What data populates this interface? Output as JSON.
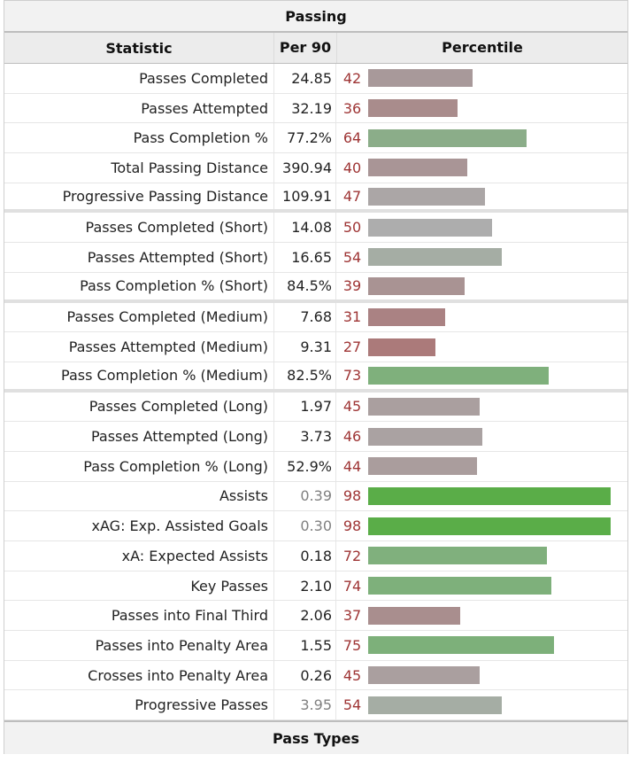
{
  "section_title": "Passing",
  "headers": {
    "statistic": "Statistic",
    "per90": "Per 90",
    "percentile": "Percentile"
  },
  "footer_title": "Pass Types",
  "rows": [
    {
      "label": "Passes Completed",
      "per90": "24.85",
      "percentile": 42,
      "color": "#a8999a",
      "muted": false,
      "sep": false
    },
    {
      "label": "Passes Attempted",
      "per90": "32.19",
      "percentile": 36,
      "color": "#a98c8c",
      "muted": false,
      "sep": false
    },
    {
      "label": "Pass Completion %",
      "per90": "77.2%",
      "percentile": 64,
      "color": "#8bad89",
      "muted": false,
      "sep": false
    },
    {
      "label": "Total Passing Distance",
      "per90": "390.94",
      "percentile": 40,
      "color": "#a99596",
      "muted": false,
      "sep": false
    },
    {
      "label": "Progressive Passing Distance",
      "per90": "109.91",
      "percentile": 47,
      "color": "#aba6a6",
      "muted": false,
      "sep": true
    },
    {
      "label": "Passes Completed (Short)",
      "per90": "14.08",
      "percentile": 50,
      "color": "#adadad",
      "muted": false,
      "sep": false
    },
    {
      "label": "Passes Attempted (Short)",
      "per90": "16.65",
      "percentile": 54,
      "color": "#a5ada4",
      "muted": false,
      "sep": false
    },
    {
      "label": "Pass Completion % (Short)",
      "per90": "84.5%",
      "percentile": 39,
      "color": "#a99393",
      "muted": false,
      "sep": true
    },
    {
      "label": "Passes Completed (Medium)",
      "per90": "7.68",
      "percentile": 31,
      "color": "#aa8283",
      "muted": false,
      "sep": false
    },
    {
      "label": "Passes Attempted (Medium)",
      "per90": "9.31",
      "percentile": 27,
      "color": "#ab7a7a",
      "muted": false,
      "sep": false
    },
    {
      "label": "Pass Completion % (Medium)",
      "per90": "82.5%",
      "percentile": 73,
      "color": "#7fb07c",
      "muted": false,
      "sep": true
    },
    {
      "label": "Passes Completed (Long)",
      "per90": "1.97",
      "percentile": 45,
      "color": "#aa9f9f",
      "muted": false,
      "sep": false
    },
    {
      "label": "Passes Attempted (Long)",
      "per90": "3.73",
      "percentile": 46,
      "color": "#aaa2a2",
      "muted": false,
      "sep": false
    },
    {
      "label": "Pass Completion % (Long)",
      "per90": "52.9%",
      "percentile": 44,
      "color": "#aa9d9d",
      "muted": false,
      "sep": false
    },
    {
      "label": "Assists",
      "per90": "0.39",
      "percentile": 98,
      "color": "#5aad48",
      "muted": true,
      "sep": false
    },
    {
      "label": "xAG: Exp. Assisted Goals",
      "per90": "0.30",
      "percentile": 98,
      "color": "#5aad48",
      "muted": true,
      "sep": false
    },
    {
      "label": "xA: Expected Assists",
      "per90": "0.18",
      "percentile": 72,
      "color": "#80b07d",
      "muted": false,
      "sep": false
    },
    {
      "label": "Key Passes",
      "per90": "2.10",
      "percentile": 74,
      "color": "#7eb07b",
      "muted": false,
      "sep": false
    },
    {
      "label": "Passes into Final Third",
      "per90": "2.06",
      "percentile": 37,
      "color": "#a98e8e",
      "muted": false,
      "sep": false
    },
    {
      "label": "Passes into Penalty Area",
      "per90": "1.55",
      "percentile": 75,
      "color": "#7db07a",
      "muted": false,
      "sep": false
    },
    {
      "label": "Crosses into Penalty Area",
      "per90": "0.26",
      "percentile": 45,
      "color": "#aa9f9f",
      "muted": false,
      "sep": false
    },
    {
      "label": "Progressive Passes",
      "per90": "3.95",
      "percentile": 54,
      "color": "#a5ada4",
      "muted": true,
      "sep": false
    }
  ]
}
